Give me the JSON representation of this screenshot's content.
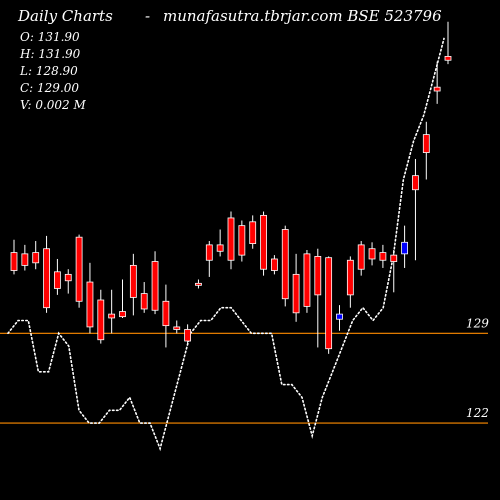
{
  "header": {
    "left": "Daily Charts",
    "separator": "-",
    "right": "munafasutra.tbrjar.com BSE 523796"
  },
  "ohlc": {
    "open": "O: 131.90",
    "high": "H: 131.90",
    "low": "L: 128.90",
    "close": "C: 129.00",
    "volume": "V: 0.002  M"
  },
  "colors": {
    "background": "#000000",
    "bearish": "#ff0000",
    "bullish": "#0000ff",
    "wick": "#ffffff",
    "level_line": "#ff8c00",
    "indicator": "#ffffff"
  },
  "chart_data": {
    "type": "candlestick",
    "ylim": [
      116,
      155
    ],
    "levels": [
      {
        "label": "129",
        "value": 129.0
      },
      {
        "label": "122",
        "value": 122.0
      }
    ],
    "candles": [
      {
        "o": 135.3,
        "h": 136.3,
        "l": 133.6,
        "c": 133.9,
        "dir": "down"
      },
      {
        "o": 135.2,
        "h": 135.9,
        "l": 133.9,
        "c": 134.3,
        "dir": "down"
      },
      {
        "o": 135.3,
        "h": 136.2,
        "l": 134.0,
        "c": 134.5,
        "dir": "down"
      },
      {
        "o": 135.6,
        "h": 136.6,
        "l": 130.6,
        "c": 131.0,
        "dir": "down"
      },
      {
        "o": 133.8,
        "h": 134.8,
        "l": 132.0,
        "c": 132.5,
        "dir": "down"
      },
      {
        "o": 133.6,
        "h": 134.0,
        "l": 132.1,
        "c": 133.1,
        "dir": "down"
      },
      {
        "o": 136.5,
        "h": 136.7,
        "l": 131.0,
        "c": 131.5,
        "dir": "down"
      },
      {
        "o": 133.0,
        "h": 134.5,
        "l": 129.0,
        "c": 129.5,
        "dir": "down"
      },
      {
        "o": 131.6,
        "h": 132.4,
        "l": 128.2,
        "c": 128.5,
        "dir": "down"
      },
      {
        "o": 130.5,
        "h": 132.4,
        "l": 129.0,
        "c": 130.2,
        "dir": "down"
      },
      {
        "o": 130.7,
        "h": 133.2,
        "l": 130.2,
        "c": 130.3,
        "dir": "down"
      },
      {
        "o": 134.3,
        "h": 135.2,
        "l": 130.4,
        "c": 131.8,
        "dir": "down"
      },
      {
        "o": 132.1,
        "h": 133.0,
        "l": 130.6,
        "c": 130.9,
        "dir": "down"
      },
      {
        "o": 134.6,
        "h": 135.4,
        "l": 130.5,
        "c": 130.8,
        "dir": "down"
      },
      {
        "o": 131.5,
        "h": 132.8,
        "l": 127.9,
        "c": 129.6,
        "dir": "down"
      },
      {
        "o": 129.5,
        "h": 130.0,
        "l": 129.0,
        "c": 129.3,
        "dir": "down"
      },
      {
        "o": 129.3,
        "h": 129.7,
        "l": 128.1,
        "c": 128.4,
        "dir": "down"
      },
      {
        "o": 132.9,
        "h": 133.2,
        "l": 132.5,
        "c": 132.8,
        "dir": "down"
      },
      {
        "o": 135.9,
        "h": 136.2,
        "l": 133.4,
        "c": 134.7,
        "dir": "down"
      },
      {
        "o": 135.9,
        "h": 137.1,
        "l": 135.0,
        "c": 135.4,
        "dir": "down"
      },
      {
        "o": 138.0,
        "h": 138.5,
        "l": 134.0,
        "c": 134.7,
        "dir": "down"
      },
      {
        "o": 137.4,
        "h": 137.8,
        "l": 134.6,
        "c": 135.1,
        "dir": "down"
      },
      {
        "o": 137.7,
        "h": 138.2,
        "l": 135.6,
        "c": 136.0,
        "dir": "down"
      },
      {
        "o": 138.2,
        "h": 138.5,
        "l": 133.5,
        "c": 134.0,
        "dir": "down"
      },
      {
        "o": 134.8,
        "h": 135.1,
        "l": 133.6,
        "c": 133.9,
        "dir": "down"
      },
      {
        "o": 137.1,
        "h": 137.4,
        "l": 131.1,
        "c": 131.7,
        "dir": "down"
      },
      {
        "o": 133.6,
        "h": 135.2,
        "l": 129.9,
        "c": 130.6,
        "dir": "down"
      },
      {
        "o": 135.2,
        "h": 135.5,
        "l": 130.6,
        "c": 131.1,
        "dir": "down"
      },
      {
        "o": 135.0,
        "h": 135.6,
        "l": 127.9,
        "c": 132.0,
        "dir": "down"
      },
      {
        "o": 134.9,
        "h": 135.0,
        "l": 127.4,
        "c": 127.8,
        "dir": "down"
      },
      {
        "o": 130.1,
        "h": 131.2,
        "l": 129.2,
        "c": 130.5,
        "dir": "up"
      },
      {
        "o": 134.7,
        "h": 135.0,
        "l": 131.0,
        "c": 132.0,
        "dir": "down"
      },
      {
        "o": 135.9,
        "h": 136.2,
        "l": 133.5,
        "c": 134.0,
        "dir": "down"
      },
      {
        "o": 135.6,
        "h": 136.1,
        "l": 134.3,
        "c": 134.8,
        "dir": "down"
      },
      {
        "o": 135.3,
        "h": 135.9,
        "l": 134.1,
        "c": 134.7,
        "dir": "down"
      },
      {
        "o": 135.1,
        "h": 135.5,
        "l": 132.2,
        "c": 134.6,
        "dir": "down"
      },
      {
        "o": 135.2,
        "h": 137.4,
        "l": 134.1,
        "c": 136.1,
        "dir": "up"
      },
      {
        "o": 141.3,
        "h": 142.6,
        "l": 134.7,
        "c": 140.2,
        "dir": "down"
      },
      {
        "o": 144.5,
        "h": 145.5,
        "l": 141.0,
        "c": 143.1,
        "dir": "down"
      },
      {
        "o": 148.2,
        "h": 150.2,
        "l": 146.9,
        "c": 147.9,
        "dir": "down"
      },
      {
        "o": 150.6,
        "h": 153.3,
        "l": 150.0,
        "c": 150.3,
        "dir": "down"
      }
    ],
    "indicator": [
      129,
      130,
      130,
      126,
      126,
      129,
      128,
      123,
      122,
      122,
      123,
      123,
      124,
      122,
      122,
      120,
      123,
      126,
      129,
      130,
      130,
      131,
      131,
      130,
      129,
      129,
      129,
      125,
      125,
      124,
      121,
      124,
      126,
      128,
      130,
      131,
      130,
      131,
      135,
      141,
      144,
      146,
      149,
      152
    ]
  }
}
